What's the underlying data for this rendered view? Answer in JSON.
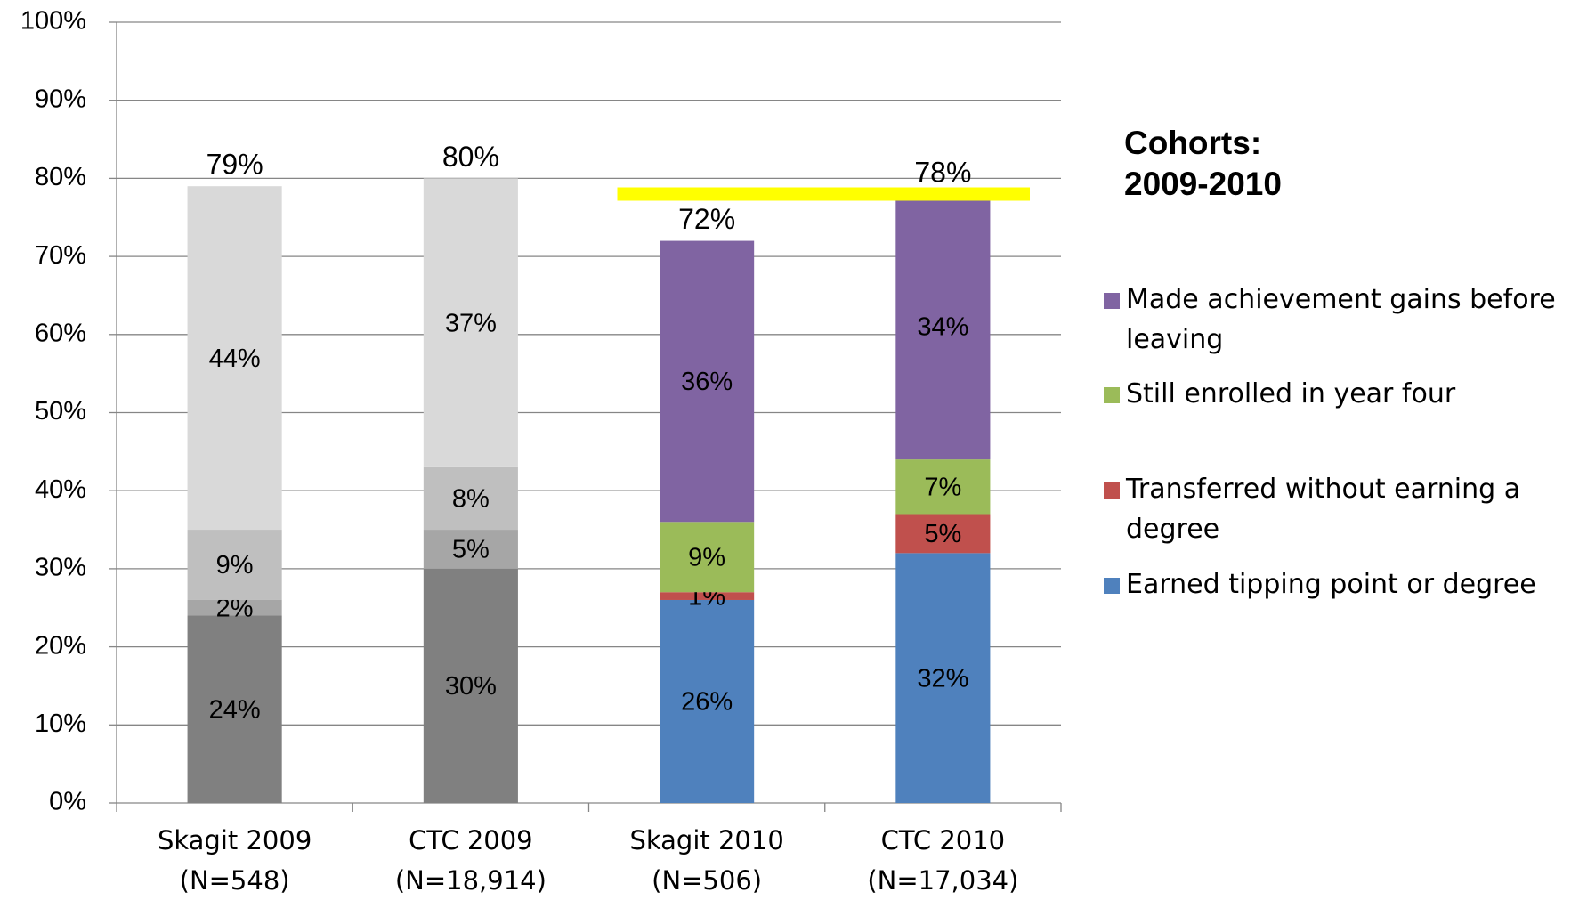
{
  "chart_data": {
    "type": "stacked_bar",
    "categories": [
      "Skagit 2009 (N=548)",
      "CTC 2009 (N=18,914)",
      "Skagit 2010 (N=506)",
      "CTC 2010 (N=17,034)"
    ],
    "series": [
      {
        "name": "Earned tipping point or degree",
        "color": "#4f81bd",
        "colors": [
          "#808080",
          "#808080",
          "#4f81bd",
          "#4f81bd"
        ],
        "values": [
          24,
          30,
          26,
          32
        ],
        "value_labels": [
          "24%",
          "30%",
          "26%",
          "32%"
        ]
      },
      {
        "name": "Transferred without earning a degree",
        "color": "#c0504d",
        "colors": [
          "#a6a6a6",
          "#a6a6a6",
          "#c0504d",
          "#c0504d"
        ],
        "values": [
          2,
          5,
          1,
          5
        ],
        "value_labels": [
          "2%",
          "5%",
          "1%",
          "5%"
        ]
      },
      {
        "name": "Still enrolled in year four",
        "color": "#9bbb59",
        "colors": [
          "#bfbfbf",
          "#bfbfbf",
          "#9bbb59",
          "#9bbb59"
        ],
        "values": [
          9,
          8,
          9,
          7
        ],
        "value_labels": [
          "9%",
          "8%",
          "9%",
          "7%"
        ]
      },
      {
        "name": "Made achievement gains before leaving",
        "color": "#8064a2",
        "colors": [
          "#d9d9d9",
          "#d9d9d9",
          "#8064a2",
          "#8064a2"
        ],
        "values": [
          44,
          37,
          36,
          34
        ],
        "value_labels": [
          "44%",
          "37%",
          "36%",
          "34%"
        ]
      }
    ],
    "totals": [
      79,
      80,
      72,
      78
    ],
    "total_labels": [
      "79%",
      "80%",
      "72%",
      "78%"
    ],
    "reference_line": {
      "value": 78,
      "color": "#ffff00"
    },
    "legend_title": "Cohorts: 2009-2010",
    "legend": "right",
    "grid": true,
    "ylim": [
      0,
      100
    ],
    "yticks": [
      {
        "value": 0,
        "label": "0%"
      },
      {
        "value": 10,
        "label": "10%"
      },
      {
        "value": 20,
        "label": "20%"
      },
      {
        "value": 30,
        "label": "30%"
      },
      {
        "value": 40,
        "label": "40%"
      },
      {
        "value": 50,
        "label": "50%"
      },
      {
        "value": 60,
        "label": "60%"
      },
      {
        "value": 70,
        "label": "70%"
      },
      {
        "value": 80,
        "label": "80%"
      },
      {
        "value": 90,
        "label": "90%"
      },
      {
        "value": 100,
        "label": "100%"
      }
    ]
  }
}
